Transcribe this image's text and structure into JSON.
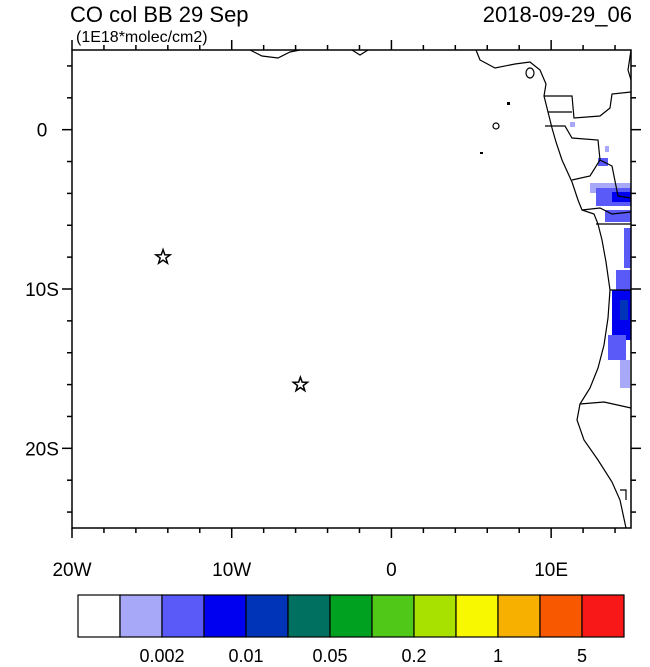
{
  "chart_data": {
    "type": "map",
    "title": "CO col BB 29 Sep",
    "subtitle": "(1E18*molec/cm2)",
    "date": "2018-09-29_06",
    "xlim": [
      -20,
      15
    ],
    "ylim": [
      -25,
      5
    ],
    "xticks": [
      {
        "value": -20,
        "label": "20W"
      },
      {
        "value": -10,
        "label": "10W"
      },
      0,
      {
        "value": 10,
        "label": "10E"
      }
    ],
    "yticks": [
      0,
      {
        "value": -10,
        "label": "10S"
      },
      {
        "value": -20,
        "label": "20S"
      }
    ],
    "xminorticks": [
      -18,
      -16,
      -14,
      -12,
      -8,
      -6,
      -4,
      -2,
      2,
      4,
      6,
      8,
      12,
      14
    ],
    "yminorticks": [
      4,
      2,
      -2,
      -4,
      -6,
      -8,
      -12,
      -14,
      -16,
      -18,
      -22,
      -24
    ],
    "markers": {
      "x": [
        -14.3,
        -5.7
      ],
      "y": [
        -8,
        -16
      ]
    },
    "colorbar": {
      "colors": [
        "#ffffff",
        "#a8a8f8",
        "#5a5af8",
        "#0000f0",
        "#0034b8",
        "#007060",
        "#00a020",
        "#50c818",
        "#a8e000",
        "#f8f800",
        "#f8b000",
        "#f85800",
        "#f81818"
      ],
      "ticks": [
        0.002,
        0.01,
        0.05,
        0.2,
        1,
        5
      ]
    }
  }
}
